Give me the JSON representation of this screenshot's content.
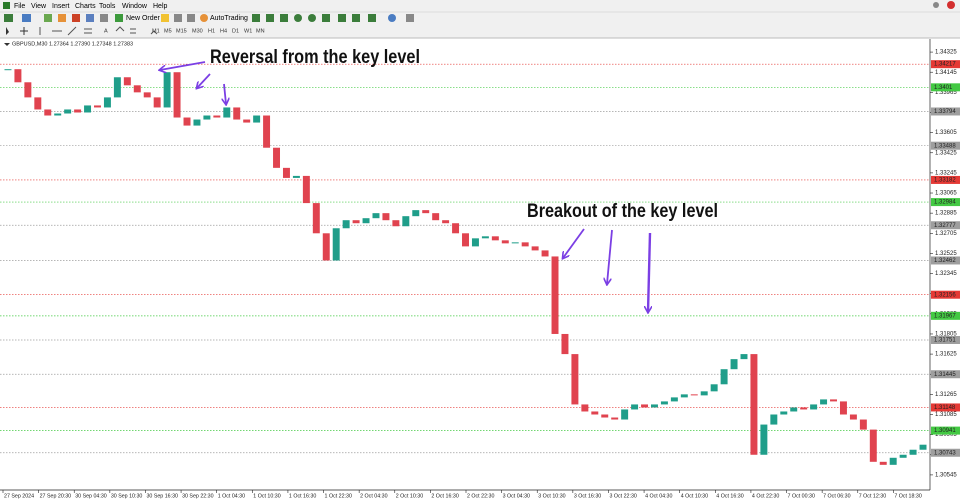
{
  "menu": [
    "File",
    "View",
    "Insert",
    "Charts",
    "Tools",
    "Window",
    "Help"
  ],
  "toolbar": {
    "new_order": "New Order",
    "autotrading": "AutoTrading"
  },
  "timeframes": [
    "M1",
    "M5",
    "M15",
    "M30",
    "H1",
    "H4",
    "D1",
    "W1",
    "MN"
  ],
  "chart": {
    "symbol_info": "GBPUSD,M30  1.27364 1.27390 1.27348 1.27383",
    "annotations": [
      "Reversal from the key level",
      "Breakout of the key level"
    ],
    "up_color": "#1f9e8a",
    "down_color": "#e0434f",
    "ylim": [
      1.34442,
      1.3041
    ],
    "yticks": [
      1.34325,
      1.34145,
      1.33965,
      1.33785,
      1.33605,
      1.33425,
      1.33245,
      1.33065,
      1.32885,
      1.32705,
      1.32525,
      1.32345,
      1.32165,
      1.31985,
      1.31805,
      1.31625,
      1.31445,
      1.31265,
      1.31085,
      1.30905,
      1.30725,
      1.30545
    ],
    "levels": [
      {
        "price": 1.34217,
        "color": "#e53935"
      },
      {
        "price": 1.3401,
        "color": "#43c943"
      },
      {
        "price": 1.33794,
        "color": "#9e9e9e"
      },
      {
        "price": 1.33488,
        "color": "#9e9e9e"
      },
      {
        "price": 1.33182,
        "color": "#e53935"
      },
      {
        "price": 1.32984,
        "color": "#43c943"
      },
      {
        "price": 1.32777,
        "color": "#9e9e9e"
      },
      {
        "price": 1.32462,
        "color": "#9e9e9e"
      },
      {
        "price": 1.32156,
        "color": "#e53935"
      },
      {
        "price": 1.31967,
        "color": "#43c943"
      },
      {
        "price": 1.31751,
        "color": "#9e9e9e"
      },
      {
        "price": 1.31445,
        "color": "#9e9e9e"
      },
      {
        "price": 1.31148,
        "color": "#e53935"
      },
      {
        "price": 1.30941,
        "color": "#43c943"
      },
      {
        "price": 1.30743,
        "color": "#9e9e9e"
      }
    ],
    "time_labels": [
      "27 Sep 2024",
      "27 Sep 20:30",
      "30 Sep 04:30",
      "30 Sep 10:30",
      "30 Sep 16:30",
      "30 Sep 22:30",
      "1 Oct 04:30",
      "1 Oct 10:30",
      "1 Oct 16:30",
      "1 Oct 22:30",
      "2 Oct 04:30",
      "2 Oct 10:30",
      "2 Oct 16:30",
      "2 Oct 22:30",
      "3 Oct 04:30",
      "3 Oct 10:30",
      "3 Oct 16:30",
      "3 Oct 22:30",
      "4 Oct 04:30",
      "4 Oct 10:30",
      "4 Oct 16:30",
      "4 Oct 22:30",
      "7 Oct 00:30",
      "7 Oct 06:30",
      "7 Oct 12:30",
      "7 Oct 18:30"
    ],
    "close": [
      1.34172,
      1.34055,
      1.3392,
      1.33812,
      1.33758,
      1.33776,
      1.33812,
      1.33785,
      1.33848,
      1.3383,
      1.3392,
      1.341,
      1.34028,
      1.33965,
      1.3392,
      1.3383,
      1.34145,
      1.3374,
      1.33668,
      1.33722,
      1.33758,
      1.3374,
      1.3383,
      1.33722,
      1.33695,
      1.33758,
      1.3347,
      1.3329,
      1.332,
      1.33218,
      1.32975,
      1.32705,
      1.32462,
      1.3275,
      1.32822,
      1.32795,
      1.3284,
      1.32885,
      1.32822,
      1.32768,
      1.32858,
      1.32912,
      1.32885,
      1.32822,
      1.32795,
      1.32705,
      1.32588,
      1.3266,
      1.32678,
      1.32642,
      1.32615,
      1.32624,
      1.32588,
      1.32552,
      1.32498,
      1.31805,
      1.31625,
      1.31175,
      1.31112,
      1.31085,
      1.31058,
      1.3104,
      1.3113,
      1.31175,
      1.31148,
      1.31175,
      1.31202,
      1.31238,
      1.31265,
      1.31256,
      1.31292,
      1.31355,
      1.3149,
      1.3158,
      1.31625,
      1.30725,
      1.30995,
      1.31085,
      1.31112,
      1.31148,
      1.3113,
      1.31175,
      1.3122,
      1.31202,
      1.31085,
      1.3104,
      1.3095,
      1.30662,
      1.30635,
      1.30698,
      1.30725,
      1.3077,
      1.30815
    ]
  }
}
